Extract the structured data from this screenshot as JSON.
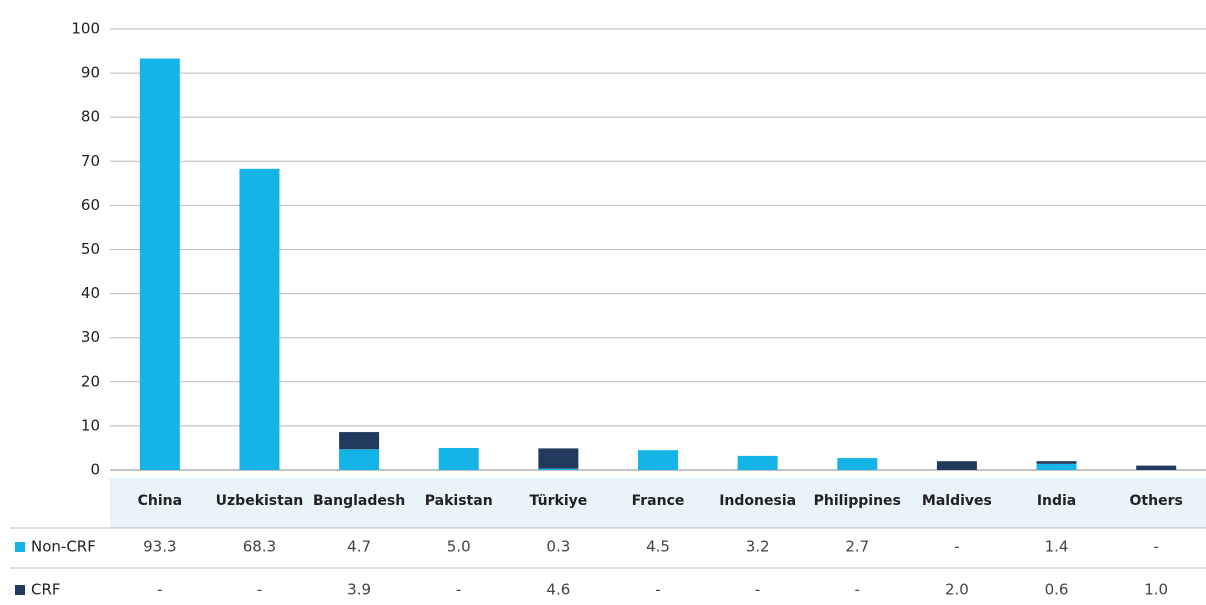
{
  "chart_data": {
    "type": "bar",
    "stacked": true,
    "categories": [
      "China",
      "Uzbekistan",
      "Bangladesh",
      "Pakistan",
      "Türkiye",
      "France",
      "Indonesia",
      "Philippines",
      "Maldives",
      "India",
      "Others"
    ],
    "series": [
      {
        "name": "Non-CRF",
        "color": "#14b4e6",
        "values": [
          93.3,
          68.3,
          4.7,
          5.0,
          0.3,
          4.5,
          3.2,
          2.7,
          null,
          1.4,
          null
        ],
        "value_labels": [
          "93.3",
          "68.3",
          "4.7",
          "5.0",
          "0.3",
          "4.5",
          "3.2",
          "2.7",
          "-",
          "1.4",
          "-"
        ]
      },
      {
        "name": "CRF",
        "color": "#223a5e",
        "values": [
          null,
          null,
          3.9,
          null,
          4.6,
          null,
          null,
          null,
          2.0,
          0.6,
          1.0
        ],
        "value_labels": [
          "-",
          "-",
          "3.9",
          "-",
          "4.6",
          "-",
          "-",
          "-",
          "2.0",
          "0.6",
          "1.0"
        ]
      }
    ],
    "ylim": [
      0,
      100
    ],
    "yticks": [
      0,
      10,
      20,
      30,
      40,
      50,
      60,
      70,
      80,
      90,
      100
    ],
    "grid": true
  }
}
